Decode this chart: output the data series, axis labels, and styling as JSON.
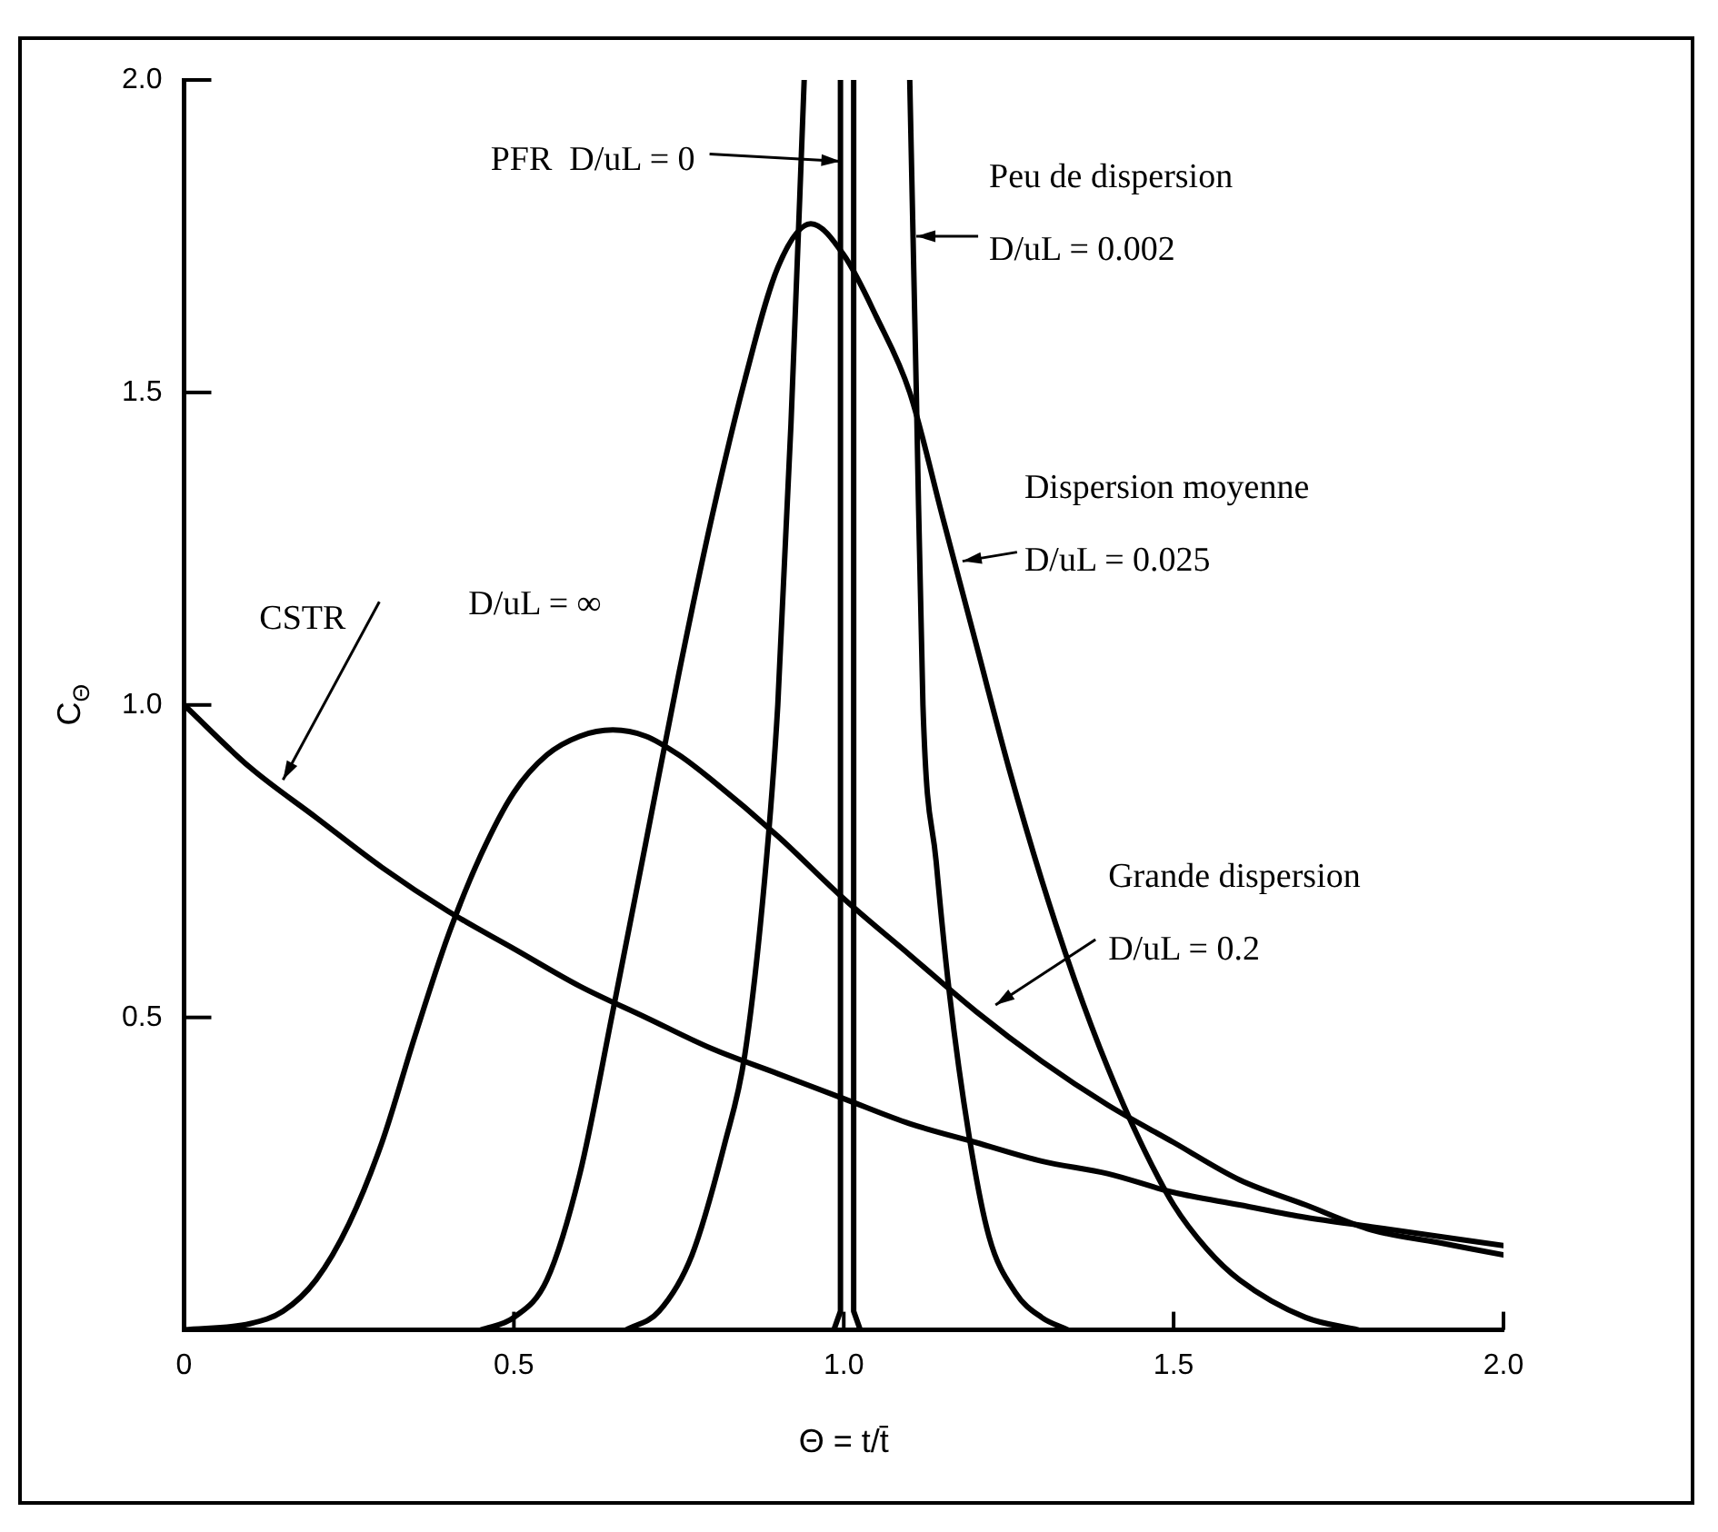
{
  "chart_data": {
    "type": "line",
    "xlabel": "Θ = t/t̄",
    "ylabel": "C$_{Θ}$",
    "xlim": [
      0,
      2.0
    ],
    "ylim": [
      0,
      2.0
    ],
    "xticks": [
      0,
      0.5,
      {
        "value": 1,
        "label": "1.0"
      },
      1.5,
      {
        "value": 2,
        "label": "2.0"
      }
    ],
    "yticks": [
      0.5,
      {
        "value": 1,
        "label": "1.0"
      },
      1.5,
      {
        "value": 2,
        "label": "2.0"
      }
    ],
    "grid": false,
    "legend": false,
    "marker": "none",
    "line_style": "solid",
    "series": [
      {
        "color": "#000000",
        "x": [
          0,
          0.1,
          0.2,
          0.3,
          0.4,
          0.5,
          0.6,
          0.7,
          0.8,
          0.9,
          1.0,
          1.1,
          1.2,
          1.3,
          1.4,
          1.5,
          1.6,
          1.7,
          1.8,
          1.9,
          2.0
        ],
        "values": [
          1.0,
          0.9,
          0.82,
          0.74,
          0.67,
          0.61,
          0.55,
          0.5,
          0.45,
          0.41,
          0.37,
          0.33,
          0.3,
          0.27,
          0.25,
          0.22,
          0.2,
          0.18,
          0.165,
          0.15,
          0.135
        ]
      },
      {
        "color": "#000000",
        "x": [
          0,
          0.1,
          0.15,
          0.2,
          0.25,
          0.3,
          0.35,
          0.4,
          0.45,
          0.5,
          0.55,
          0.6,
          0.65,
          0.7,
          0.75,
          0.8,
          0.9,
          1.0,
          1.1,
          1.2,
          1.3,
          1.4,
          1.5,
          1.6,
          1.7,
          1.8,
          1.9,
          2.0
        ],
        "values": [
          0,
          0.01,
          0.03,
          0.08,
          0.17,
          0.3,
          0.47,
          0.63,
          0.76,
          0.86,
          0.92,
          0.95,
          0.96,
          0.95,
          0.92,
          0.88,
          0.79,
          0.69,
          0.6,
          0.51,
          0.43,
          0.36,
          0.3,
          0.24,
          0.2,
          0.16,
          0.14,
          0.12
        ]
      },
      {
        "color": "#000000",
        "x": [
          0.45,
          0.5,
          0.55,
          0.6,
          0.65,
          0.7,
          0.75,
          0.8,
          0.85,
          0.9,
          0.95,
          1.0,
          1.05,
          1.1,
          1.15,
          1.2,
          1.25,
          1.3,
          1.35,
          1.4,
          1.45,
          1.5,
          1.55,
          1.6,
          1.7,
          1.78
        ],
        "values": [
          0,
          0.02,
          0.08,
          0.25,
          0.51,
          0.78,
          1.05,
          1.3,
          1.52,
          1.7,
          1.77,
          1.72,
          1.62,
          1.5,
          1.3,
          1.1,
          0.9,
          0.72,
          0.56,
          0.42,
          0.3,
          0.2,
          0.13,
          0.08,
          0.02,
          0
        ]
      },
      {
        "color": "#000000",
        "x": [
          0.67,
          0.72,
          0.77,
          0.82,
          0.85,
          0.88,
          0.9,
          0.92,
          0.94,
          1.0,
          1.1,
          1.11,
          1.12,
          1.14,
          1.16,
          1.19,
          1.22,
          1.26,
          1.3,
          1.34
        ],
        "values": [
          0,
          0.03,
          0.12,
          0.3,
          0.44,
          0.72,
          1.0,
          1.45,
          2.0,
          null,
          2.0,
          1.5,
          1.0,
          0.75,
          0.54,
          0.31,
          0.15,
          0.06,
          0.02,
          0
        ]
      },
      {
        "color": "#000000",
        "x": [
          0.985,
          0.995,
          0.995,
          1.0,
          1.015,
          1.015,
          1.025
        ],
        "values": [
          0,
          0.03,
          2.0,
          null,
          2.0,
          0.03,
          0
        ]
      }
    ],
    "annotations": [
      "PFR  D/uL = 0",
      "Peu de dispersion\nD/uL = 0.002",
      "Dispersion moyenne\nD/uL = 0.025",
      "Grande dispersion\nD/uL = 0.2",
      "CSTR",
      "D/uL = ∞"
    ]
  }
}
